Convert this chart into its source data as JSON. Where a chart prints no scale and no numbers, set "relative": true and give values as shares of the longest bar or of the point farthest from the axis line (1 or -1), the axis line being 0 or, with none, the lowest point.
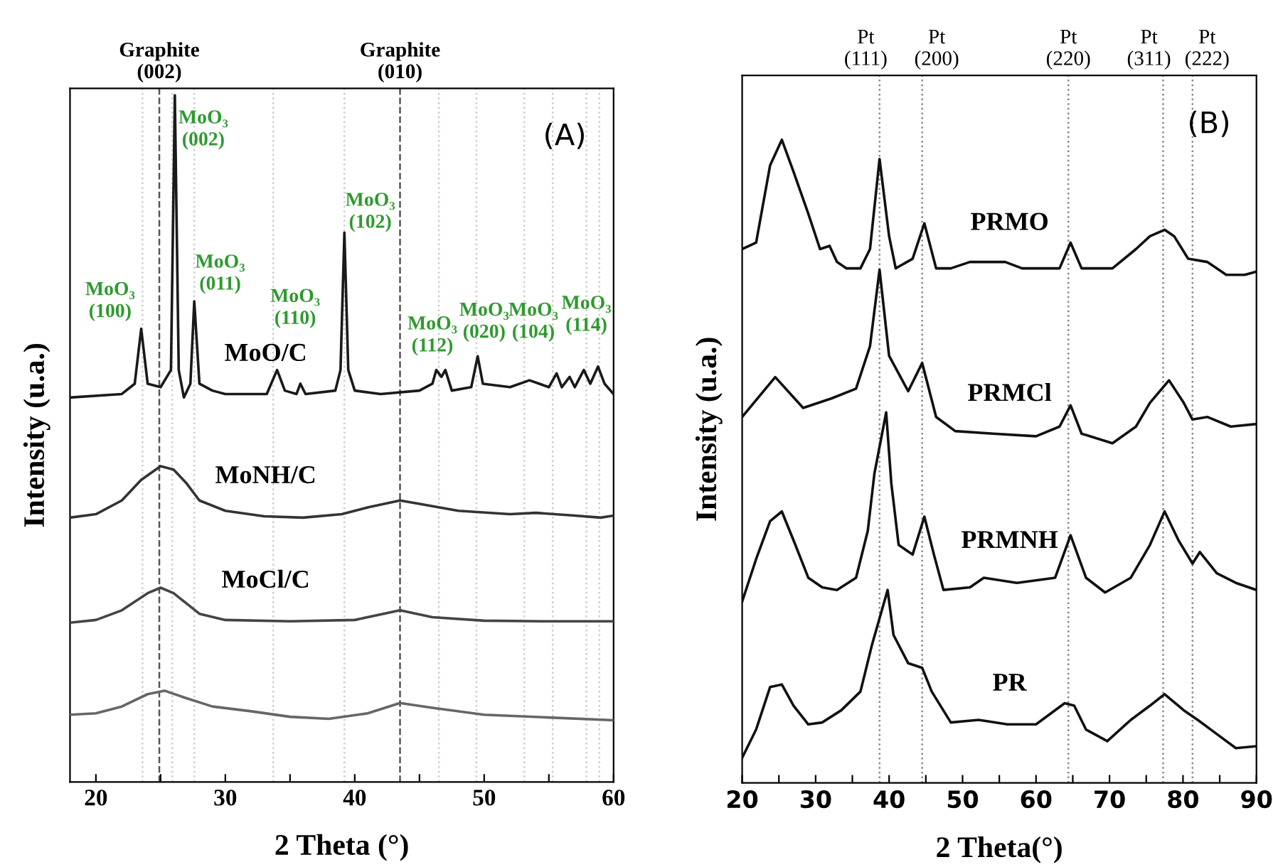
{
  "chart_data": [
    {
      "type": "line",
      "relative": true,
      "tick_labels": "x",
      "grid": false,
      "legend": false,
      "ylabel": "Intensity (u.a.)",
      "xlabel": "2 Theta (°)",
      "xlim": [
        18,
        60
      ],
      "xticks": [
        20,
        {
          "value": 25,
          "label": null
        },
        30,
        {
          "value": 35,
          "label": null
        },
        40,
        {
          "value": 45,
          "label": null
        },
        50,
        {
          "value": 55,
          "label": null
        },
        60
      ],
      "series": [
        {
          "name": "MoO/C",
          "color": "#1a1a1a",
          "x": [
            18,
            22,
            23.0,
            23.5,
            24,
            25,
            25.8,
            26.1,
            26.4,
            26.8,
            27.3,
            27.6,
            28.0,
            29,
            30,
            33.2,
            34,
            34.6,
            35.5,
            35.8,
            36.2,
            38.5,
            38.9,
            39.2,
            39.5,
            40,
            42,
            45,
            46,
            46.3,
            46.7,
            47,
            47.5,
            49,
            49.5,
            49.9,
            52,
            53.5,
            55,
            55.6,
            56,
            56.6,
            57,
            57.7,
            58.2,
            58.8,
            59.3,
            60
          ],
          "values": [
            0.56,
            0.565,
            0.58,
            0.66,
            0.58,
            0.575,
            0.6,
            1.0,
            0.6,
            0.56,
            0.58,
            0.7,
            0.58,
            0.57,
            0.565,
            0.565,
            0.6,
            0.57,
            0.565,
            0.58,
            0.565,
            0.57,
            0.6,
            0.8,
            0.6,
            0.57,
            0.565,
            0.57,
            0.58,
            0.6,
            0.59,
            0.6,
            0.57,
            0.575,
            0.62,
            0.58,
            0.575,
            0.585,
            0.575,
            0.595,
            0.575,
            0.59,
            0.575,
            0.6,
            0.58,
            0.605,
            0.58,
            0.565
          ]
        },
        {
          "name": "MoNH/C",
          "color": "#333333",
          "x": [
            18,
            20,
            22,
            23.5,
            25,
            26,
            27,
            28,
            30,
            33,
            36,
            39,
            41,
            43.5,
            45,
            48,
            52,
            54,
            57,
            59,
            60
          ],
          "values": [
            0.385,
            0.39,
            0.41,
            0.44,
            0.46,
            0.455,
            0.435,
            0.41,
            0.395,
            0.387,
            0.385,
            0.39,
            0.4,
            0.41,
            0.405,
            0.395,
            0.39,
            0.392,
            0.388,
            0.385,
            0.388
          ]
        },
        {
          "name": "MoCl/C",
          "color": "#444444",
          "x": [
            18,
            20,
            22,
            24,
            25,
            26,
            27,
            28,
            30,
            35,
            40,
            43.5,
            46,
            50,
            55,
            60
          ],
          "values": [
            0.232,
            0.236,
            0.25,
            0.275,
            0.283,
            0.275,
            0.26,
            0.245,
            0.236,
            0.234,
            0.236,
            0.25,
            0.24,
            0.235,
            0.234,
            0.234
          ]
        },
        {
          "color": "#666666",
          "x": [
            18,
            20,
            22,
            24,
            25.3,
            27,
            29,
            32,
            35,
            38,
            41,
            43.5,
            46,
            50,
            55,
            60
          ],
          "values": [
            0.098,
            0.1,
            0.11,
            0.128,
            0.133,
            0.122,
            0.11,
            0.103,
            0.095,
            0.092,
            0.1,
            0.115,
            0.108,
            0.098,
            0.094,
            0.09
          ]
        }
      ],
      "ref_lines": [
        {
          "axis": "x",
          "value": 24.9,
          "label": "Graphite\n(002)",
          "color": "#555555",
          "line_style": "dashed"
        },
        {
          "axis": "x",
          "value": 43.5,
          "label": "Graphite\n(010)",
          "color": "#555555",
          "line_style": "dashed"
        },
        {
          "axis": "x",
          "value": 23.6,
          "color": "#cccccc",
          "line_style": "dotted"
        },
        {
          "axis": "x",
          "value": 25.9,
          "color": "#cccccc",
          "line_style": "dotted"
        },
        {
          "axis": "x",
          "value": 27.6,
          "color": "#cccccc",
          "line_style": "dotted"
        },
        {
          "axis": "x",
          "value": 33.7,
          "color": "#cccccc",
          "line_style": "dotted"
        },
        {
          "axis": "x",
          "value": 39.2,
          "color": "#cccccc",
          "line_style": "dotted"
        },
        {
          "axis": "x",
          "value": 46.5,
          "color": "#cccccc",
          "line_style": "dotted"
        },
        {
          "axis": "x",
          "value": 49.4,
          "color": "#cccccc",
          "line_style": "dotted"
        },
        {
          "axis": "x",
          "value": 53.1,
          "color": "#cccccc",
          "line_style": "dotted"
        },
        {
          "axis": "x",
          "value": 55.3,
          "color": "#cccccc",
          "line_style": "dotted"
        },
        {
          "axis": "x",
          "value": 57.9,
          "color": "#cccccc",
          "line_style": "dotted"
        },
        {
          "axis": "x",
          "value": 58.9,
          "color": "#cccccc",
          "line_style": "dotted"
        }
      ],
      "annotations": [
        "(A)",
        {
          "text": "MoO₃\n(100)",
          "x": 23.5,
          "y": 0.66
        },
        {
          "text": "MoO₃\n(002)",
          "x": 26.1,
          "y": 1.0
        },
        {
          "text": "MoO₃\n(011)",
          "x": 27.6,
          "y": 0.7
        },
        {
          "text": "MoO₃\n(110)",
          "x": 34,
          "y": 0.6
        },
        {
          "text": "MoO₃\n(102)",
          "x": 39.2,
          "y": 0.8
        },
        {
          "text": "MoO₃\n(112)",
          "x": 46.3,
          "y": 0.6
        },
        {
          "text": "MoO₃\n(020)",
          "x": 49.5,
          "y": 0.62
        },
        {
          "text": "MoO₃\n(104)",
          "x": 53.5,
          "y": 0.585
        },
        {
          "text": "MoO₃\n(114)",
          "x": 58.8,
          "y": 0.605
        }
      ]
    },
    {
      "type": "line",
      "relative": true,
      "tick_labels": "x",
      "grid": false,
      "legend": false,
      "ylabel": "Intensity (u.a.)",
      "xlabel": "2 Theta(°)",
      "xlim": [
        20,
        90
      ],
      "xticks": [
        20,
        {
          "value": 25,
          "label": null
        },
        30,
        {
          "value": 35,
          "label": null
        },
        40,
        {
          "value": 45,
          "label": null
        },
        50,
        {
          "value": 55,
          "label": null
        },
        60,
        {
          "value": 65,
          "label": null
        },
        70,
        {
          "value": 75,
          "label": null
        },
        80,
        {
          "value": 85,
          "label": null
        },
        90
      ],
      "series": [
        {
          "name": "PRMO",
          "color": "#111111",
          "x": [
            20,
            21.9,
            23.8,
            25.4,
            27.0,
            29.0,
            30.6,
            31.9,
            32.9,
            34.2,
            36.1,
            37.4,
            38.7,
            40.0,
            40.9,
            43.2,
            44.8,
            46.4,
            48.4,
            51.0,
            52.9,
            55.8,
            58.1,
            63.2,
            64.7,
            66.2,
            67.8,
            70.4,
            73.6,
            75.5,
            77.5,
            78.8,
            80.7,
            83.3,
            85.9,
            88.4,
            90
          ],
          "values": [
            0.83,
            0.84,
            0.96,
            1.0,
            0.95,
            0.885,
            0.83,
            0.835,
            0.81,
            0.8,
            0.8,
            0.83,
            0.97,
            0.85,
            0.8,
            0.815,
            0.87,
            0.8,
            0.8,
            0.81,
            0.81,
            0.81,
            0.8,
            0.8,
            0.84,
            0.8,
            0.8,
            0.8,
            0.83,
            0.85,
            0.86,
            0.85,
            0.815,
            0.81,
            0.79,
            0.79,
            0.795
          ]
        },
        {
          "name": "PRMCl",
          "color": "#111111",
          "x": [
            20,
            24.5,
            28.3,
            32.2,
            35.5,
            37.4,
            38.7,
            40.0,
            42.6,
            44.5,
            46.4,
            49.0,
            54.2,
            60.0,
            63.2,
            64.7,
            66.2,
            70.4,
            73.6,
            75.5,
            78.1,
            80.1,
            81.3,
            83.3,
            86.5,
            90
          ],
          "values": [
            0.569,
            0.631,
            0.583,
            0.598,
            0.613,
            0.679,
            0.798,
            0.664,
            0.609,
            0.653,
            0.569,
            0.547,
            0.543,
            0.539,
            0.554,
            0.587,
            0.543,
            0.528,
            0.554,
            0.591,
            0.626,
            0.591,
            0.565,
            0.569,
            0.554,
            0.558
          ]
        },
        {
          "name": "PRMNH",
          "color": "#111111",
          "x": [
            20,
            21.9,
            23.8,
            25.4,
            27.0,
            29.0,
            30.9,
            32.9,
            35.5,
            37.1,
            38.0,
            39.6,
            40.3,
            41.3,
            43.2,
            44.8,
            46.1,
            47.4,
            51.0,
            52.9,
            57.4,
            62.6,
            64.7,
            66.8,
            69.4,
            72.9,
            75.5,
            77.5,
            79.4,
            81.3,
            82.3,
            84.6,
            87.2,
            90
          ],
          "values": [
            0.282,
            0.348,
            0.407,
            0.422,
            0.377,
            0.319,
            0.304,
            0.3,
            0.319,
            0.392,
            0.481,
            0.576,
            0.466,
            0.37,
            0.355,
            0.414,
            0.355,
            0.3,
            0.304,
            0.319,
            0.311,
            0.319,
            0.385,
            0.319,
            0.296,
            0.319,
            0.37,
            0.422,
            0.377,
            0.341,
            0.359,
            0.326,
            0.311,
            0.3
          ]
        },
        {
          "name": "PR",
          "color": "#111111",
          "x": [
            20,
            21.9,
            23.8,
            25.4,
            27.0,
            29.0,
            30.9,
            33.5,
            36.1,
            37.7,
            39.8,
            40.6,
            42.6,
            44.5,
            45.8,
            48.4,
            52.2,
            56.1,
            60.0,
            63.9,
            65.2,
            66.8,
            69.7,
            72.9,
            75.5,
            77.5,
            80.1,
            82.0,
            84.6,
            87.2,
            90
          ],
          "values": [
            0.039,
            0.083,
            0.149,
            0.153,
            0.12,
            0.091,
            0.094,
            0.113,
            0.142,
            0.216,
            0.3,
            0.23,
            0.186,
            0.179,
            0.142,
            0.094,
            0.098,
            0.091,
            0.091,
            0.124,
            0.12,
            0.083,
            0.065,
            0.098,
            0.12,
            0.138,
            0.113,
            0.098,
            0.076,
            0.054,
            0.057
          ]
        }
      ],
      "ref_lines": [
        {
          "axis": "x",
          "value": 38.7,
          "label": "Pt\n(111)",
          "color": "#888888",
          "line_style": "dotted"
        },
        {
          "axis": "x",
          "value": 44.5,
          "label": "Pt\n(200)",
          "color": "#888888",
          "line_style": "dotted"
        },
        {
          "axis": "x",
          "value": 64.4,
          "label": "Pt\n(220)",
          "color": "#888888",
          "line_style": "dotted"
        },
        {
          "axis": "x",
          "value": 77.3,
          "label": "Pt\n(311)",
          "color": "#888888",
          "line_style": "dotted"
        },
        {
          "axis": "x",
          "value": 81.3,
          "label": "Pt\n(222)",
          "color": "#888888",
          "line_style": "dotted"
        }
      ],
      "annotations": [
        "(B)"
      ]
    }
  ]
}
